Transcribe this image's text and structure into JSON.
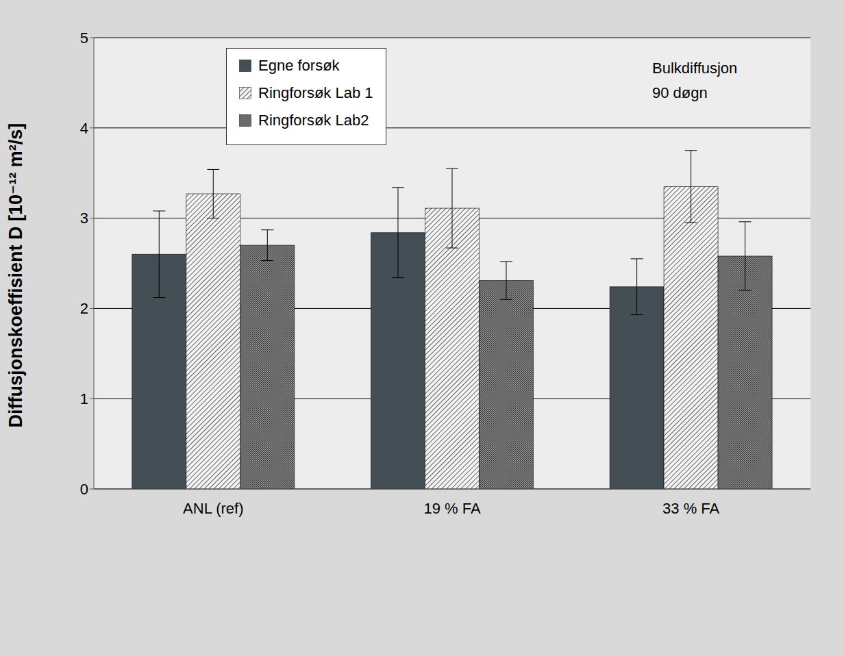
{
  "chart_data": {
    "type": "bar",
    "annotation": "Bulkdiffusjon\n90 døgn",
    "y_label": "Diffusjonskoeffisient D [10⁻¹² m²/s]",
    "categories": [
      "ANL (ref)",
      "19 % FA",
      "33 % FA"
    ],
    "series": [
      {
        "name": "Egne forsøk",
        "color": "#444e55",
        "values": [
          2.6,
          2.84,
          2.24
        ],
        "error": [
          0.48,
          0.5,
          0.31
        ]
      },
      {
        "name": "Ringforsøk Lab 1",
        "color": "#3a3a3a",
        "values": [
          3.27,
          3.11,
          3.35
        ],
        "error": [
          0.27,
          0.44,
          0.4
        ]
      },
      {
        "name": "Ringforsøk Lab2",
        "color": "#3a3a3a",
        "values": [
          2.7,
          2.31,
          2.58
        ],
        "error": [
          0.17,
          0.21,
          0.38
        ]
      }
    ],
    "ylim": [
      0,
      5
    ],
    "yticks": [
      0,
      1,
      2,
      3,
      4,
      5
    ],
    "grid": true,
    "legend": "top-left"
  }
}
